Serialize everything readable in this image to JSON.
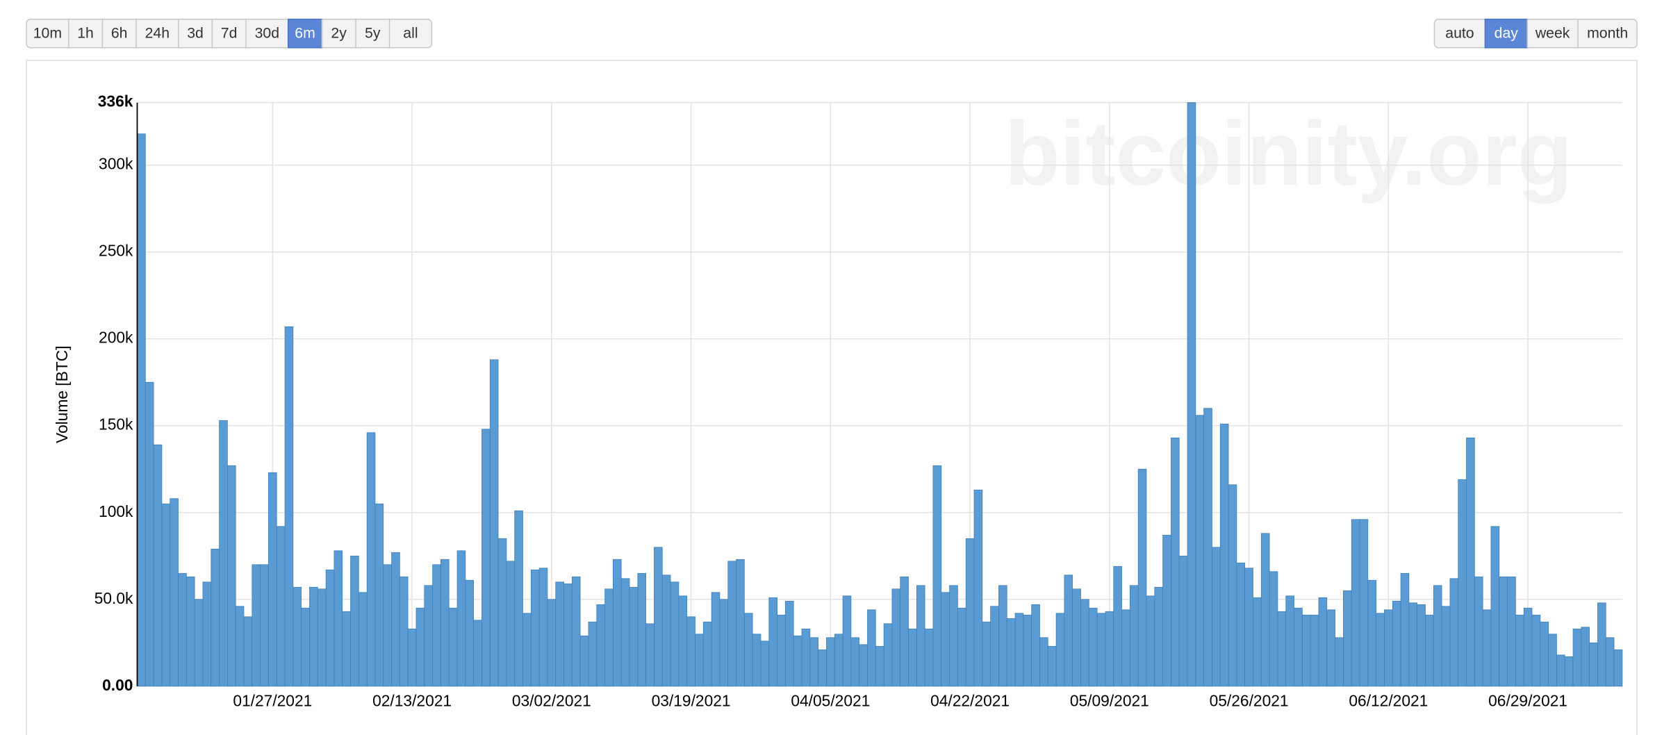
{
  "toolbar": {
    "ranges": [
      "10m",
      "1h",
      "6h",
      "24h",
      "3d",
      "7d",
      "30d",
      "6m",
      "2y",
      "5y",
      "all"
    ],
    "active_range": "6m",
    "resolutions": [
      "auto",
      "day",
      "week",
      "month"
    ],
    "active_resolution": "day"
  },
  "chart_data": {
    "type": "bar",
    "watermark": "bitcoinity.org",
    "y_label": "Volume [BTC]",
    "color": "#5b9bd3",
    "grid": true,
    "ylim": [
      0,
      336000
    ],
    "yticks": [
      {
        "value": 0,
        "label": "0.00"
      },
      {
        "value": 50000,
        "label": "50.0k"
      },
      {
        "value": 100000,
        "label": "100k"
      },
      {
        "value": 150000,
        "label": "150k"
      },
      {
        "value": 200000,
        "label": "200k"
      },
      {
        "value": 250000,
        "label": "250k"
      },
      {
        "value": 300000,
        "label": "300k"
      },
      {
        "value": 336000,
        "label": "336k"
      }
    ],
    "categories": [
      null,
      null,
      null,
      null,
      null,
      null,
      null,
      null,
      null,
      null,
      null,
      null,
      null,
      null,
      null,
      null,
      "01/27/2021",
      null,
      null,
      null,
      null,
      null,
      null,
      null,
      null,
      null,
      null,
      null,
      null,
      null,
      null,
      null,
      null,
      "02/13/2021",
      null,
      null,
      null,
      null,
      null,
      null,
      null,
      null,
      null,
      null,
      null,
      null,
      null,
      null,
      null,
      null,
      "03/02/2021",
      null,
      null,
      null,
      null,
      null,
      null,
      null,
      null,
      null,
      null,
      null,
      null,
      null,
      null,
      null,
      null,
      "03/19/2021",
      null,
      null,
      null,
      null,
      null,
      null,
      null,
      null,
      null,
      null,
      null,
      null,
      null,
      null,
      null,
      null,
      "04/05/2021",
      null,
      null,
      null,
      null,
      null,
      null,
      null,
      null,
      null,
      null,
      null,
      null,
      null,
      null,
      null,
      null,
      "04/22/2021",
      null,
      null,
      null,
      null,
      null,
      null,
      null,
      null,
      null,
      null,
      null,
      null,
      null,
      null,
      null,
      null,
      "05/09/2021",
      null,
      null,
      null,
      null,
      null,
      null,
      null,
      null,
      null,
      null,
      null,
      null,
      null,
      null,
      null,
      null,
      "05/26/2021",
      null,
      null,
      null,
      null,
      null,
      null,
      null,
      null,
      null,
      null,
      null,
      null,
      null,
      null,
      null,
      null,
      "06/12/2021",
      null,
      null,
      null,
      null,
      null,
      null,
      null,
      null,
      null,
      null,
      null,
      null,
      null,
      null,
      null,
      null,
      "06/29/2021",
      null,
      null,
      null,
      null,
      null,
      null,
      null,
      null,
      null,
      null,
      null
    ],
    "values": [
      318000,
      175000,
      139000,
      105000,
      108000,
      65000,
      63000,
      50000,
      60000,
      79000,
      153000,
      127000,
      46000,
      40000,
      70000,
      70000,
      123000,
      92000,
      207000,
      57000,
      45000,
      57000,
      56000,
      67000,
      78000,
      43000,
      75000,
      54000,
      146000,
      105000,
      70000,
      77000,
      63000,
      33000,
      45000,
      58000,
      70000,
      73000,
      45000,
      78000,
      61000,
      38000,
      148000,
      188000,
      85000,
      72000,
      101000,
      42000,
      67000,
      68000,
      50000,
      60000,
      59000,
      63000,
      29000,
      37000,
      47000,
      56000,
      73000,
      62000,
      57000,
      65000,
      36000,
      80000,
      64000,
      60000,
      52000,
      40000,
      30000,
      37000,
      54000,
      50000,
      72000,
      73000,
      42000,
      30000,
      26000,
      51000,
      41000,
      49000,
      29000,
      33000,
      28000,
      21000,
      28000,
      30000,
      52000,
      28000,
      24000,
      44000,
      23000,
      36000,
      56000,
      63000,
      33000,
      58000,
      33000,
      127000,
      54000,
      58000,
      45000,
      85000,
      113000,
      37000,
      46000,
      58000,
      39000,
      42000,
      41000,
      47000,
      28000,
      23000,
      42000,
      64000,
      56000,
      50000,
      45000,
      42000,
      43000,
      69000,
      44000,
      58000,
      125000,
      52000,
      57000,
      87000,
      143000,
      75000,
      336000,
      156000,
      160000,
      80000,
      151000,
      116000,
      71000,
      68000,
      51000,
      88000,
      66000,
      43000,
      52000,
      45000,
      41000,
      41000,
      51000,
      44000,
      28000,
      55000,
      96000,
      96000,
      61000,
      42000,
      44000,
      49000,
      65000,
      48000,
      47000,
      41000,
      58000,
      46000,
      62000,
      119000,
      143000,
      63000,
      44000,
      92000,
      63000,
      63000,
      41000,
      45000,
      41000,
      37000,
      30000,
      18000,
      17000,
      33000,
      34000,
      25000,
      48000,
      28000,
      21000
    ]
  }
}
